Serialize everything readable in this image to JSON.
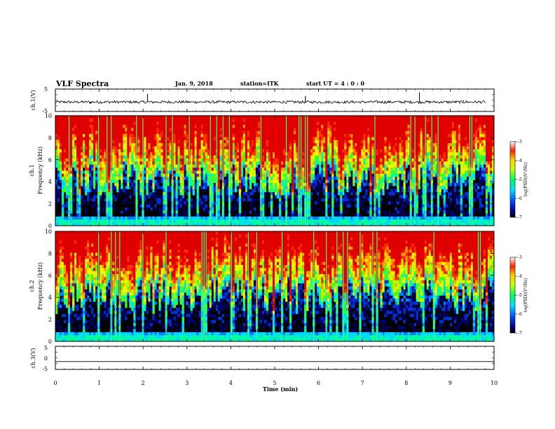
{
  "header": {
    "title": "VLF Spectra",
    "date": "Jan. 9, 2018",
    "station": "station=ITK",
    "start": "start UT =  4 : 0 : 0"
  },
  "chart_data": [
    {
      "type": "line",
      "panel": "ch1-waveform",
      "ylabel": "ch.1(V)",
      "ylim": [
        -5,
        5
      ],
      "yticks": [
        "5",
        "-5"
      ],
      "xlim": [
        0,
        10
      ],
      "trace_color": "#000000",
      "series": [
        {
          "x": [
            0.0,
            0.8,
            2.0,
            2.1,
            3.0,
            3.8,
            5.7,
            6.4,
            7.5,
            8.3,
            9.3,
            9.8
          ],
          "y": [
            -0.8,
            -1.6,
            -0.5,
            2.8,
            -1.0,
            -0.8,
            1.9,
            -0.9,
            -1.5,
            3.5,
            0.0,
            -0.8
          ]
        }
      ]
    },
    {
      "type": "heatmap",
      "panel": "ch1-spectrogram",
      "ylabel_line1": "ch.1",
      "ylabel_line2": "Frequency (kHz)",
      "ylim": [
        0,
        10
      ],
      "yticks": [
        "0",
        "2",
        "4",
        "6",
        "8",
        "10"
      ],
      "xlim": [
        0,
        10
      ],
      "colorbar": {
        "label": "log(PSD)(V²/Hz)",
        "range": [
          -7,
          -3
        ],
        "ticks": [
          "-3",
          "-4",
          "-5",
          "-6",
          "-7"
        ]
      }
    },
    {
      "type": "heatmap",
      "panel": "ch2-spectrogram",
      "ylabel_line1": "ch.2",
      "ylabel_line2": "Frequency (kHz)",
      "ylim": [
        0,
        10
      ],
      "yticks": [
        "0",
        "2",
        "4",
        "6",
        "8",
        "10"
      ],
      "xlim": [
        0,
        10
      ],
      "colorbar": {
        "label": "log(PSD)(V²/Hz)",
        "range": [
          -7,
          -3
        ],
        "ticks": [
          "-3",
          "-4",
          "-5",
          "-6",
          "-7"
        ]
      }
    },
    {
      "type": "line",
      "panel": "ch3-waveform",
      "ylabel": "ch.3(V)",
      "ylim": [
        -5,
        5
      ],
      "yticks": [
        "5",
        "0",
        "-5"
      ],
      "xlim": [
        0,
        10
      ],
      "trace_color": "#000000",
      "series": [
        {
          "x": [
            0,
            10
          ],
          "y": [
            -1.6,
            -1.6
          ]
        }
      ]
    }
  ],
  "xaxis": {
    "label": "Time (min)",
    "ticks": [
      "0",
      "1",
      "2",
      "3",
      "4",
      "5",
      "6",
      "7",
      "8",
      "9",
      "10"
    ]
  }
}
